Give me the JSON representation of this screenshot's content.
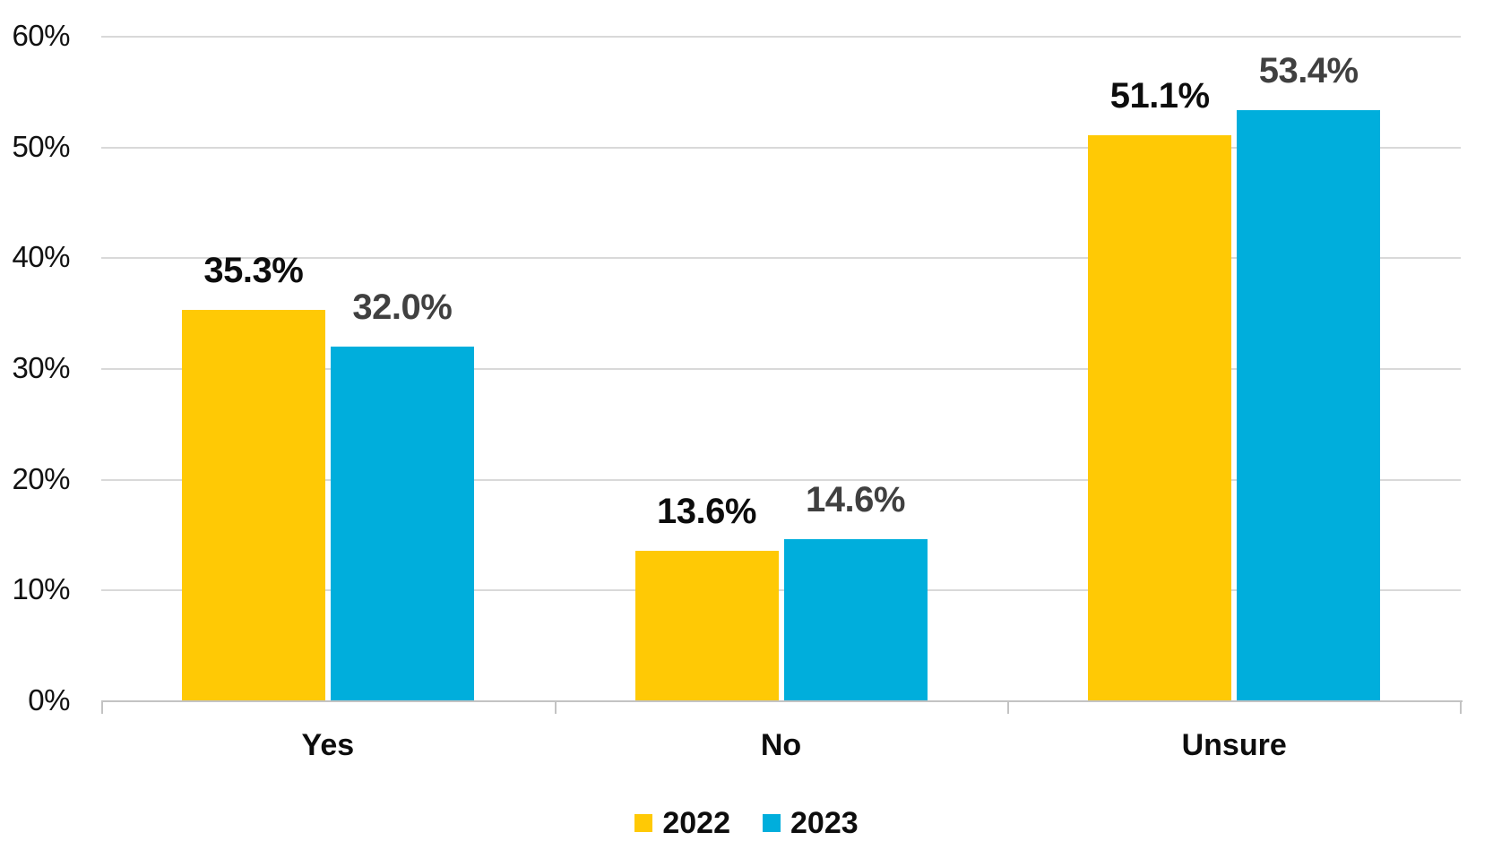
{
  "chart_data": {
    "type": "bar",
    "title": "",
    "xlabel": "",
    "ylabel": "",
    "categories": [
      "Yes",
      "No",
      "Unsure"
    ],
    "series": [
      {
        "name": "2022",
        "color": "#FFC905",
        "label_color": "#0D0D0D",
        "values": [
          35.3,
          13.6,
          51.1
        ],
        "labels": [
          "35.3%",
          "13.6%",
          "51.1%"
        ]
      },
      {
        "name": "2023",
        "color": "#00AEDC",
        "label_color": "#404040",
        "values": [
          32.0,
          14.6,
          53.4
        ],
        "labels": [
          "32.0%",
          "14.6%",
          "53.4%"
        ]
      }
    ],
    "ylim": [
      0,
      60
    ],
    "y_ticks": [
      {
        "value": 60,
        "label": "60%"
      },
      {
        "value": 50,
        "label": "50%"
      },
      {
        "value": 40,
        "label": "40%"
      },
      {
        "value": 30,
        "label": "30%"
      },
      {
        "value": 20,
        "label": "20%"
      },
      {
        "value": 10,
        "label": "10%"
      },
      {
        "value": 0,
        "label": "0%"
      }
    ],
    "grid": true,
    "legend_position": "bottom"
  },
  "colors": {
    "background": "#FFFFFF",
    "gridline": "#D9D9D9",
    "axis_line": "#C3C3C3",
    "tick_label": "#111111",
    "category_label": "#0D0D0D"
  }
}
